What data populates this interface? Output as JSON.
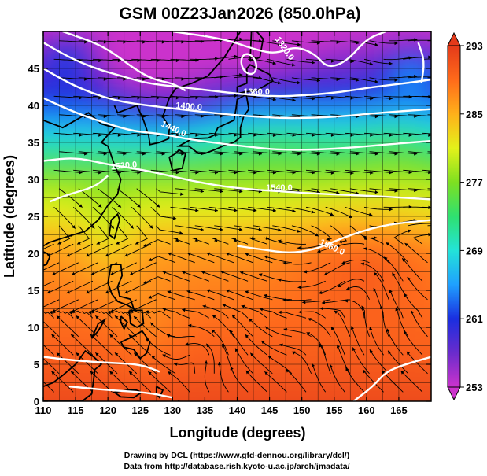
{
  "chart_data": {
    "type": "heatmap",
    "title": "GSM 00Z23Jan2026 (850.0hPa)",
    "xlabel": "Longitude (degrees)",
    "ylabel": "Latitude  (degrees)",
    "xlim": [
      110,
      170
    ],
    "ylim": [
      0,
      50
    ],
    "xticks": [
      110,
      115,
      120,
      125,
      130,
      135,
      140,
      145,
      150,
      155,
      160,
      165
    ],
    "yticks": [
      0,
      5,
      10,
      15,
      20,
      25,
      30,
      35,
      40,
      45
    ],
    "colorbar": {
      "min": 253,
      "max": 293,
      "ticks": [
        293,
        285,
        277,
        269,
        261,
        253
      ],
      "colors": [
        "#cc33cc",
        "#6a2ccc",
        "#1a2ee0",
        "#1fa0ff",
        "#23e3d8",
        "#2fe070",
        "#7ee021",
        "#e4f11a",
        "#ffb01a",
        "#ff6a1a",
        "#e43a1a"
      ]
    },
    "contour_labels": [
      {
        "text": "1320.0",
        "lon": 147.0,
        "lat": 47.5,
        "angle": 55
      },
      {
        "text": "1360.0",
        "lon": 143.0,
        "lat": 41.5,
        "angle": 0
      },
      {
        "text": "1400.0",
        "lon": 132.5,
        "lat": 39.5,
        "angle": 5
      },
      {
        "text": "1440.0",
        "lon": 130.0,
        "lat": 36.5,
        "angle": 25
      },
      {
        "text": "1520.0",
        "lon": 122.5,
        "lat": 31.5,
        "angle": -5
      },
      {
        "text": "1540.0",
        "lon": 146.5,
        "lat": 28.5,
        "angle": 0
      },
      {
        "text": "1560.0",
        "lon": 154.5,
        "lat": 20.5,
        "angle": 25
      }
    ],
    "legend": "none",
    "grid": true
  },
  "footer": {
    "line1": "Drawing by DCL (https://www.gfd-dennou.org/library/dcl/)",
    "line2": "Data from http://database.rish.kyoto-u.ac.jp/arch/jmadata/"
  }
}
